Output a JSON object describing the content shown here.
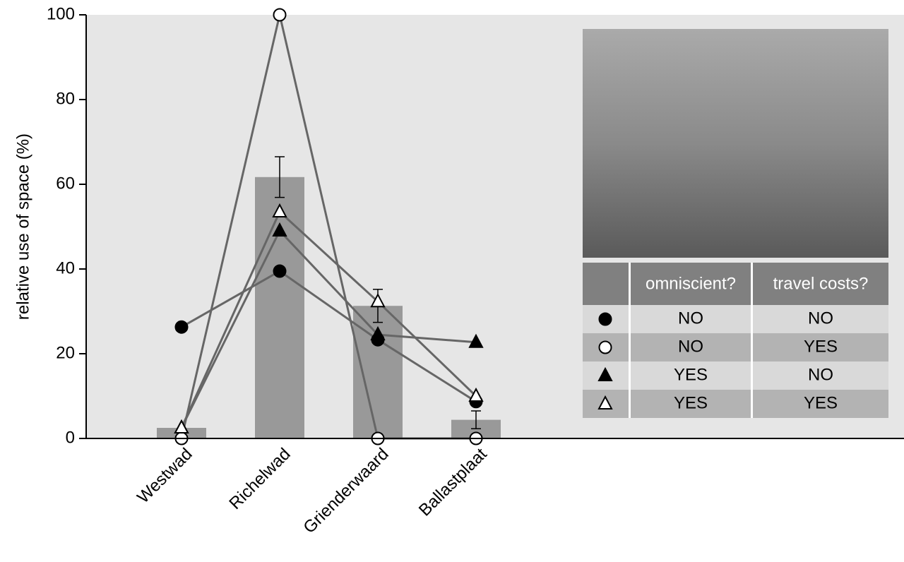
{
  "chart_data": {
    "type": "bar",
    "y_label": "relative use of space (%)",
    "categories": [
      "Westwad",
      "Richelwad",
      "Grienderwaard",
      "Ballastplaat"
    ],
    "bars": {
      "values": [
        2.5,
        61.7,
        31.3,
        4.4
      ],
      "errors": [
        null,
        4.8,
        3.9,
        2.1
      ],
      "color": "#999999"
    },
    "line_color": "#666666",
    "series": [
      {
        "marker": "circle",
        "filled": true,
        "values": [
          26.3,
          39.5,
          23.3,
          8.7
        ]
      },
      {
        "marker": "circle",
        "filled": false,
        "values": [
          0,
          100,
          0,
          0
        ]
      },
      {
        "marker": "triangle",
        "filled": true,
        "values": [
          2.5,
          49,
          24.5,
          22.7
        ]
      },
      {
        "marker": "triangle",
        "filled": false,
        "values": [
          2.5,
          53.5,
          32.3,
          10
        ]
      }
    ],
    "ylim": [
      0,
      100
    ],
    "yticks": [
      0,
      20,
      40,
      60,
      80,
      100
    ],
    "legend": {
      "columns": [
        "omniscient?",
        "travel costs?"
      ],
      "rows": [
        [
          "NO",
          "NO"
        ],
        [
          "NO",
          "YES"
        ],
        [
          "YES",
          "NO"
        ],
        [
          "YES",
          "YES"
        ]
      ]
    }
  }
}
